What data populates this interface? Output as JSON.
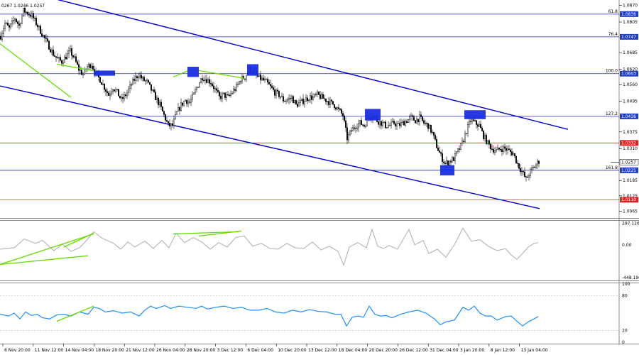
{
  "header": {
    "ohlc_text": "0267 1.0246 1.0257"
  },
  "colors": {
    "background": "#ffffff",
    "candle": "#000000",
    "channel": "#0000cc",
    "trendline": "#66dd00",
    "fib_line": "#2222ee",
    "support_line": "#ee2222",
    "cci_line": "#b4b4b4",
    "rsi_line": "#1e90ff",
    "tag_blue": "#1f3fbf",
    "tag_red": "#dd2222",
    "box_fill": "#1a2ee0"
  },
  "chart_data": [
    {
      "type": "candlestick",
      "name": "price",
      "y_range": [
        1.0044,
        1.088
      ],
      "y_ticks": [
        "1.0870",
        "1.0805",
        "1.0685",
        "1.0620",
        "1.0560",
        "1.0495",
        "1.0375",
        "1.0310",
        "1.0185",
        "1.0125",
        "1.0065"
      ],
      "fib_levels": [
        {
          "ratio": "61.8",
          "price": "1.0836"
        },
        {
          "ratio": "76.4",
          "price": "1.0747"
        },
        {
          "ratio": "100.0",
          "price": "1.0603"
        },
        {
          "ratio": "127.2",
          "price": "1.0436"
        },
        {
          "ratio": "161.8",
          "price": "1.0225"
        }
      ],
      "support_levels": [
        "1.0332",
        "1.0110"
      ],
      "current_price": "1.0257",
      "close_path": [
        [
          0,
          1.075
        ],
        [
          3,
          1.08
        ],
        [
          6,
          1.078
        ],
        [
          10,
          1.082
        ],
        [
          13,
          1.079
        ],
        [
          16,
          1.085
        ],
        [
          19,
          1.084
        ],
        [
          22,
          1.083
        ],
        [
          25,
          1.08
        ],
        [
          28,
          1.077
        ],
        [
          31,
          1.074
        ],
        [
          34,
          1.071
        ],
        [
          37,
          1.068
        ],
        [
          40,
          1.066
        ],
        [
          43,
          1.065
        ],
        [
          46,
          1.067
        ],
        [
          49,
          1.069
        ],
        [
          52,
          1.066
        ],
        [
          55,
          1.062
        ],
        [
          58,
          1.06
        ],
        [
          61,
          1.063
        ],
        [
          64,
          1.064
        ],
        [
          67,
          1.06
        ],
        [
          70,
          1.058
        ],
        [
          73,
          1.055
        ],
        [
          76,
          1.052
        ],
        [
          79,
          1.055
        ],
        [
          82,
          1.053
        ],
        [
          85,
          1.05
        ],
        [
          88,
          1.052
        ],
        [
          91,
          1.055
        ],
        [
          94,
          1.058
        ],
        [
          97,
          1.06
        ],
        [
          100,
          1.058
        ],
        [
          103,
          1.057
        ],
        [
          106,
          1.054
        ],
        [
          109,
          1.051
        ],
        [
          112,
          1.048
        ],
        [
          115,
          1.044
        ],
        [
          118,
          1.04
        ],
        [
          121,
          1.04
        ],
        [
          124,
          1.045
        ],
        [
          127,
          1.048
        ],
        [
          130,
          1.05
        ],
        [
          133,
          1.049
        ],
        [
          136,
          1.052
        ],
        [
          139,
          1.056
        ],
        [
          142,
          1.059
        ],
        [
          145,
          1.058
        ],
        [
          148,
          1.057
        ],
        [
          151,
          1.054
        ],
        [
          154,
          1.051
        ],
        [
          157,
          1.052
        ],
        [
          160,
          1.051
        ],
        [
          163,
          1.053
        ],
        [
          166,
          1.055
        ],
        [
          169,
          1.058
        ],
        [
          172,
          1.059
        ],
        [
          175,
          1.062
        ],
        [
          178,
          1.061
        ],
        [
          181,
          1.059
        ],
        [
          184,
          1.058
        ],
        [
          187,
          1.057
        ],
        [
          190,
          1.055
        ],
        [
          193,
          1.053
        ],
        [
          196,
          1.052
        ],
        [
          199,
          1.05
        ],
        [
          202,
          1.05
        ],
        [
          205,
          1.051
        ],
        [
          208,
          1.048
        ],
        [
          211,
          1.049
        ],
        [
          214,
          1.05
        ],
        [
          217,
          1.051
        ],
        [
          220,
          1.051
        ],
        [
          223,
          1.052
        ],
        [
          226,
          1.051
        ],
        [
          229,
          1.05
        ],
        [
          232,
          1.049
        ],
        [
          235,
          1.048
        ],
        [
          238,
          1.046
        ],
        [
          241,
          1.044
        ],
        [
          244,
          1.035
        ],
        [
          247,
          1.038
        ],
        [
          250,
          1.04
        ],
        [
          253,
          1.041
        ],
        [
          256,
          1.04
        ],
        [
          259,
          1.043
        ],
        [
          262,
          1.044
        ],
        [
          265,
          1.042
        ],
        [
          268,
          1.041
        ],
        [
          271,
          1.04
        ],
        [
          274,
          1.04
        ],
        [
          277,
          1.041
        ],
        [
          280,
          1.04
        ],
        [
          283,
          1.041
        ],
        [
          286,
          1.042
        ],
        [
          289,
          1.043
        ],
        [
          292,
          1.042
        ],
        [
          295,
          1.043
        ],
        [
          298,
          1.041
        ],
        [
          301,
          1.04
        ],
        [
          304,
          1.037
        ],
        [
          307,
          1.032
        ],
        [
          310,
          1.028
        ],
        [
          313,
          1.025
        ],
        [
          316,
          1.026
        ],
        [
          319,
          1.027
        ],
        [
          322,
          1.03
        ],
        [
          325,
          1.033
        ],
        [
          328,
          1.038
        ],
        [
          331,
          1.042
        ],
        [
          334,
          1.041
        ],
        [
          337,
          1.04
        ],
        [
          340,
          1.036
        ],
        [
          343,
          1.033
        ],
        [
          346,
          1.031
        ],
        [
          349,
          1.03
        ],
        [
          352,
          1.031
        ],
        [
          355,
          1.031
        ],
        [
          358,
          1.03
        ],
        [
          361,
          1.029
        ],
        [
          364,
          1.025
        ],
        [
          367,
          1.022
        ],
        [
          370,
          1.019
        ],
        [
          373,
          1.022
        ],
        [
          376,
          1.024
        ],
        [
          379,
          1.026
        ]
      ],
      "channel_lines": [
        {
          "p1": [
            0,
            1.095
          ],
          "p2": [
            400,
            1.0385
          ]
        },
        {
          "p1": [
            0,
            1.0555
          ],
          "p2": [
            380,
            1.0075
          ]
        }
      ],
      "trend_lines": [
        [
          [
            0,
            1.072
          ],
          [
            50,
            1.051
          ]
        ],
        [
          [
            40,
            1.064
          ],
          [
            70,
            1.061
          ]
        ],
        [
          [
            122,
            1.059
          ],
          [
            135,
            1.062
          ]
        ],
        [
          [
            135,
            1.062
          ],
          [
            172,
            1.0585
          ]
        ]
      ],
      "boxes": [
        {
          "x": [
            66,
            81
          ],
          "y": [
            1.0615,
            1.0595
          ]
        },
        {
          "x": [
            132,
            140
          ],
          "y": [
            1.063,
            1.059
          ]
        },
        {
          "x": [
            174,
            182
          ],
          "y": [
            1.064,
            1.0595
          ]
        },
        {
          "x": [
            257,
            268
          ],
          "y": [
            1.0465,
            1.042
          ]
        },
        {
          "x": [
            310,
            320
          ],
          "y": [
            1.0245,
            1.0205
          ]
        },
        {
          "x": [
            327,
            342
          ],
          "y": [
            1.046,
            1.0425
          ]
        }
      ]
    },
    {
      "type": "line",
      "name": "CCI",
      "y_range": [
        -470,
        320
      ],
      "y_ticks": [
        "297.1261",
        "0.00",
        "-448.1963"
      ],
      "series_sample_points": [
        [
          0,
          -60
        ],
        [
          10,
          -40
        ],
        [
          17,
          80
        ],
        [
          25,
          20
        ],
        [
          30,
          60
        ],
        [
          38,
          -80
        ],
        [
          44,
          10
        ],
        [
          50,
          -90
        ],
        [
          56,
          -40
        ],
        [
          60,
          40
        ],
        [
          66,
          180
        ],
        [
          72,
          90
        ],
        [
          80,
          20
        ],
        [
          85,
          -60
        ],
        [
          90,
          40
        ],
        [
          95,
          -30
        ],
        [
          102,
          50
        ],
        [
          108,
          -50
        ],
        [
          114,
          60
        ],
        [
          119,
          -40
        ],
        [
          124,
          160
        ],
        [
          130,
          30
        ],
        [
          136,
          100
        ],
        [
          142,
          40
        ],
        [
          148,
          -60
        ],
        [
          154,
          30
        ],
        [
          160,
          -30
        ],
        [
          166,
          100
        ],
        [
          172,
          120
        ],
        [
          178,
          -20
        ],
        [
          184,
          20
        ],
        [
          190,
          -50
        ],
        [
          196,
          -60
        ],
        [
          202,
          20
        ],
        [
          208,
          -40
        ],
        [
          214,
          -50
        ],
        [
          220,
          40
        ],
        [
          226,
          -70
        ],
        [
          232,
          -20
        ],
        [
          238,
          -90
        ],
        [
          242,
          -280
        ],
        [
          246,
          -30
        ],
        [
          252,
          30
        ],
        [
          258,
          -40
        ],
        [
          262,
          210
        ],
        [
          266,
          -20
        ],
        [
          270,
          -50
        ],
        [
          274,
          -10
        ],
        [
          280,
          -60
        ],
        [
          284,
          80
        ],
        [
          288,
          210
        ],
        [
          292,
          0
        ],
        [
          298,
          60
        ],
        [
          302,
          -120
        ],
        [
          308,
          -60
        ],
        [
          314,
          -170
        ],
        [
          320,
          0
        ],
        [
          326,
          230
        ],
        [
          332,
          50
        ],
        [
          338,
          70
        ],
        [
          344,
          -20
        ],
        [
          350,
          -80
        ],
        [
          356,
          -50
        ],
        [
          360,
          -140
        ],
        [
          364,
          -200
        ],
        [
          368,
          -120
        ],
        [
          372,
          -30
        ],
        [
          376,
          20
        ],
        [
          379,
          30
        ]
      ],
      "trend_lines": [
        [
          [
            0,
            -270
          ],
          [
            66,
            150
          ]
        ],
        [
          [
            0,
            -270
          ],
          [
            62,
            -150
          ]
        ],
        [
          [
            45,
            -30
          ],
          [
            66,
            160
          ]
        ],
        [
          [
            122,
            150
          ],
          [
            168,
            180
          ]
        ],
        [
          [
            140,
            120
          ],
          [
            170,
            190
          ]
        ]
      ]
    },
    {
      "type": "line",
      "name": "RSI",
      "y_range": [
        0,
        100
      ],
      "y_ticks": [
        "100",
        "80",
        "20",
        "0"
      ],
      "series_sample_points": [
        [
          0,
          48
        ],
        [
          6,
          45
        ],
        [
          10,
          50
        ],
        [
          14,
          40
        ],
        [
          18,
          52
        ],
        [
          22,
          46
        ],
        [
          26,
          48
        ],
        [
          30,
          42
        ],
        [
          35,
          40
        ],
        [
          40,
          47
        ],
        [
          45,
          48
        ],
        [
          50,
          45
        ],
        [
          56,
          52
        ],
        [
          62,
          48
        ],
        [
          66,
          60
        ],
        [
          70,
          58
        ],
        [
          74,
          52
        ],
        [
          80,
          54
        ],
        [
          86,
          50
        ],
        [
          92,
          52
        ],
        [
          98,
          45
        ],
        [
          102,
          55
        ],
        [
          106,
          62
        ],
        [
          110,
          58
        ],
        [
          116,
          63
        ],
        [
          120,
          58
        ],
        [
          126,
          62
        ],
        [
          132,
          60
        ],
        [
          138,
          58
        ],
        [
          142,
          62
        ],
        [
          146,
          57
        ],
        [
          152,
          60
        ],
        [
          158,
          62
        ],
        [
          164,
          58
        ],
        [
          170,
          60
        ],
        [
          176,
          55
        ],
        [
          182,
          55
        ],
        [
          188,
          58
        ],
        [
          194,
          52
        ],
        [
          200,
          50
        ],
        [
          206,
          55
        ],
        [
          212,
          52
        ],
        [
          218,
          56
        ],
        [
          224,
          53
        ],
        [
          230,
          52
        ],
        [
          236,
          48
        ],
        [
          240,
          48
        ],
        [
          244,
          28
        ],
        [
          248,
          43
        ],
        [
          252,
          45
        ],
        [
          256,
          43
        ],
        [
          260,
          62
        ],
        [
          264,
          48
        ],
        [
          268,
          45
        ],
        [
          272,
          46
        ],
        [
          276,
          42
        ],
        [
          282,
          48
        ],
        [
          288,
          52
        ],
        [
          294,
          55
        ],
        [
          300,
          50
        ],
        [
          306,
          40
        ],
        [
          310,
          30
        ],
        [
          314,
          35
        ],
        [
          320,
          38
        ],
        [
          326,
          60
        ],
        [
          330,
          55
        ],
        [
          334,
          62
        ],
        [
          338,
          50
        ],
        [
          342,
          45
        ],
        [
          346,
          45
        ],
        [
          350,
          38
        ],
        [
          356,
          44
        ],
        [
          360,
          45
        ],
        [
          364,
          36
        ],
        [
          368,
          28
        ],
        [
          372,
          35
        ],
        [
          376,
          40
        ],
        [
          379,
          44
        ]
      ],
      "trend_lines": [
        [
          [
            40,
            36
          ],
          [
            66,
            62
          ]
        ]
      ]
    }
  ],
  "x_axis": {
    "labels": [
      "6 Nov 20:00",
      "11 Nov 12:00",
      "14 Nov 04:00",
      "18 Nov 20:00",
      "21 Nov 12:00",
      "26 Nov 04:00",
      "28 Nov 20:00",
      "3 Dec 12:00",
      "6 Dec 04:00",
      "10 Dec 20:00",
      "13 Dec 12:00",
      "18 Dec 04:00",
      "20 Dec 20:00",
      "26 Dec 12:00",
      "31 Dec 04:00",
      "3 Jan 20:00",
      "8 Jan 12:00",
      "13 Jan 04:00"
    ]
  }
}
